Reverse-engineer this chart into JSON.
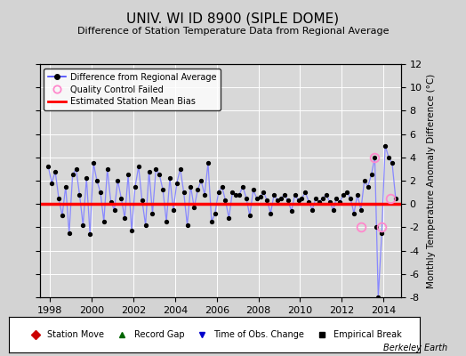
{
  "title": "UNIV. WI ID 8900 (SIPLE DOME)",
  "subtitle": "Difference of Station Temperature Data from Regional Average",
  "ylabel_right": "Monthly Temperature Anomaly Difference (°C)",
  "ylim": [
    -8,
    12
  ],
  "yticks": [
    -8,
    -6,
    -4,
    -2,
    0,
    2,
    4,
    6,
    8,
    10,
    12
  ],
  "xlim": [
    1997.5,
    2014.83
  ],
  "xticks": [
    1998,
    2000,
    2002,
    2004,
    2006,
    2008,
    2010,
    2012,
    2014
  ],
  "bias_line": 0.0,
  "background_color": "#d3d3d3",
  "plot_bg_color": "#d8d8d8",
  "line_color": "#8888ff",
  "marker_color": "#000000",
  "bias_color": "#ff0000",
  "watermark": "Berkeley Earth",
  "data_years": [
    1997.917,
    1998.083,
    1998.25,
    1998.417,
    1998.583,
    1998.75,
    1998.917,
    1999.083,
    1999.25,
    1999.417,
    1999.583,
    1999.75,
    1999.917,
    2000.083,
    2000.25,
    2000.417,
    2000.583,
    2000.75,
    2000.917,
    2001.083,
    2001.25,
    2001.417,
    2001.583,
    2001.75,
    2001.917,
    2002.083,
    2002.25,
    2002.417,
    2002.583,
    2002.75,
    2002.917,
    2003.083,
    2003.25,
    2003.417,
    2003.583,
    2003.75,
    2003.917,
    2004.083,
    2004.25,
    2004.417,
    2004.583,
    2004.75,
    2004.917,
    2005.083,
    2005.25,
    2005.417,
    2005.583,
    2005.75,
    2005.917,
    2006.083,
    2006.25,
    2006.417,
    2006.583,
    2006.75,
    2006.917,
    2007.083,
    2007.25,
    2007.417,
    2007.583,
    2007.75,
    2007.917,
    2008.083,
    2008.25,
    2008.417,
    2008.583,
    2008.75,
    2008.917,
    2009.083,
    2009.25,
    2009.417,
    2009.583,
    2009.75,
    2009.917,
    2010.083,
    2010.25,
    2010.417,
    2010.583,
    2010.75,
    2010.917,
    2011.083,
    2011.25,
    2011.417,
    2011.583,
    2011.75,
    2011.917,
    2012.083,
    2012.25,
    2012.417,
    2012.583,
    2012.75,
    2012.917,
    2013.083,
    2013.25,
    2013.417,
    2013.583,
    2013.667,
    2013.75,
    2013.917,
    2014.083,
    2014.25,
    2014.417,
    2014.583
  ],
  "data_values": [
    3.2,
    1.8,
    2.8,
    0.5,
    -1.0,
    1.5,
    -2.5,
    2.5,
    3.0,
    0.8,
    -1.8,
    2.2,
    -2.6,
    3.5,
    2.0,
    1.0,
    -1.5,
    3.0,
    0.2,
    -0.5,
    2.0,
    0.5,
    -1.2,
    2.5,
    -2.3,
    1.5,
    3.2,
    0.3,
    -1.8,
    2.8,
    -0.8,
    3.0,
    2.5,
    1.2,
    -1.5,
    2.2,
    -0.5,
    1.8,
    3.0,
    1.0,
    -1.8,
    1.5,
    -0.3,
    1.2,
    2.0,
    0.8,
    3.5,
    -1.5,
    -0.8,
    1.0,
    1.5,
    0.3,
    -1.2,
    1.0,
    0.8,
    0.8,
    1.5,
    0.5,
    -1.0,
    1.2,
    0.5,
    0.6,
    1.0,
    0.3,
    -0.8,
    0.8,
    0.3,
    0.5,
    0.8,
    0.3,
    -0.6,
    0.8,
    0.3,
    0.5,
    1.0,
    0.2,
    -0.5,
    0.5,
    0.2,
    0.5,
    0.8,
    0.2,
    -0.5,
    0.5,
    0.2,
    0.8,
    1.0,
    0.5,
    -0.8,
    0.8,
    -0.5,
    2.0,
    1.5,
    2.5,
    4.0,
    -2.0,
    -8.0,
    -2.5,
    5.0,
    4.0,
    3.5,
    0.5
  ],
  "qc_failed_years": [
    2012.917,
    2013.583,
    2013.917,
    2014.333
  ],
  "qc_failed_values": [
    -2.0,
    4.0,
    -2.0,
    0.5
  ],
  "bottom_legend": [
    {
      "label": "Station Move",
      "color": "#cc0000",
      "marker": "D"
    },
    {
      "label": "Record Gap",
      "color": "#006600",
      "marker": "^"
    },
    {
      "label": "Time of Obs. Change",
      "color": "#0000cc",
      "marker": "v"
    },
    {
      "label": "Empirical Break",
      "color": "#000000",
      "marker": "s"
    }
  ]
}
